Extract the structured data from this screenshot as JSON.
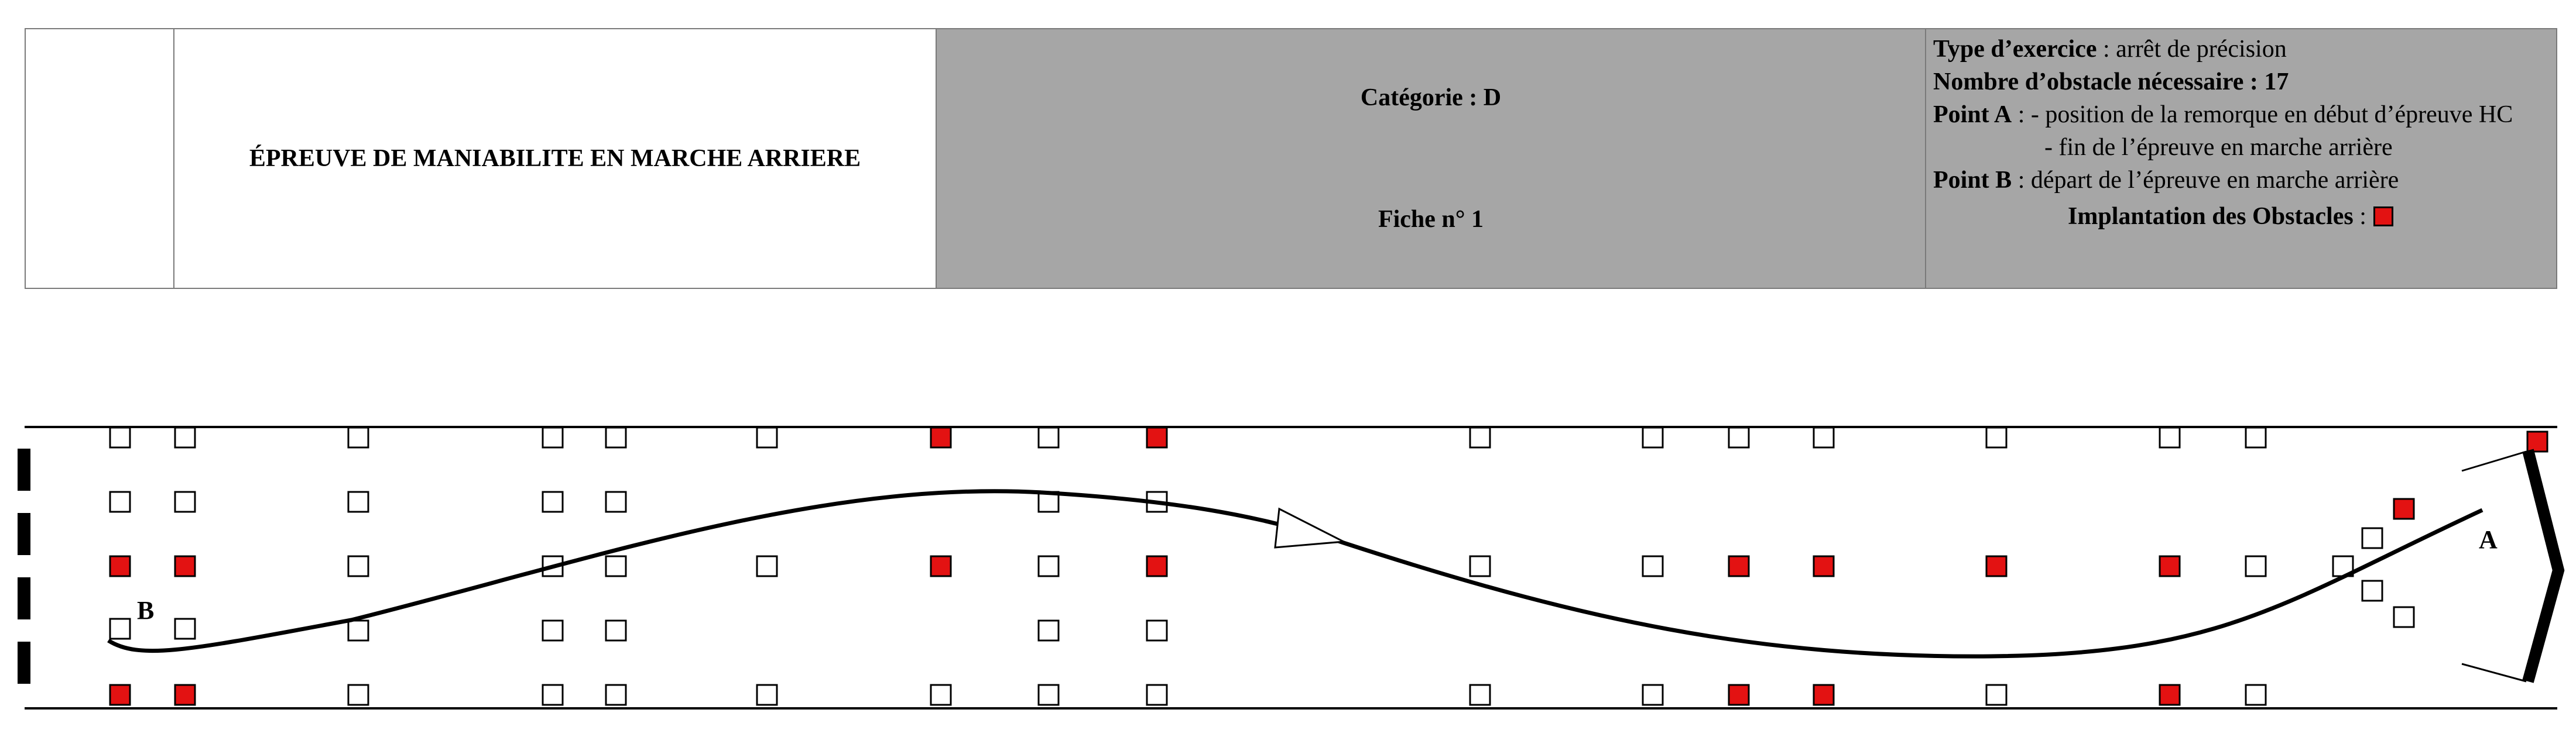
{
  "header": {
    "title": "ÉPREUVE DE MANIABILITE EN MARCHE ARRIERE",
    "category": "Catégorie : D",
    "sheet": "Fiche n° 1",
    "info": {
      "exercise_type_label": "Type d’exercice",
      "exercise_type_value": " : arrêt de précision",
      "obstacles_needed_label": "Nombre d’obstacle nécessaire",
      "obstacles_needed_value": " : 17",
      "point_a_label": "Point A",
      "point_a_line1": " : - position de la remorque en début d’épreuve HC",
      "point_a_line2": "- fin de l’épreuve en marche arrière",
      "point_b_label": "Point B",
      "point_b_value": " : départ de l’épreuve en marche arrière",
      "legend_label": "Implantation des Obstacles",
      "legend_sep": " :"
    }
  },
  "diagram": {
    "label_a": "A",
    "label_b": "B",
    "colors": {
      "obstacle_red": "#e31212",
      "stroke": "#000000"
    }
  }
}
